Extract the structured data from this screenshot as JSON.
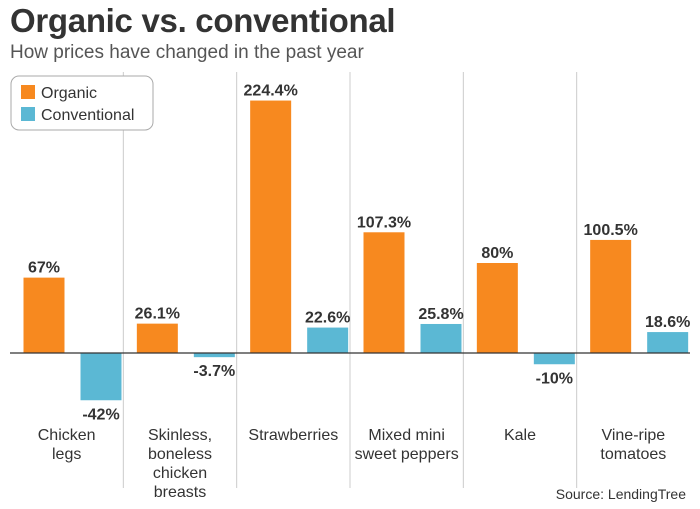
{
  "title": "Organic vs. conventional",
  "subtitle": "How prices have changed in the past year",
  "source": "Source: LendingTree",
  "colors": {
    "organic": "#F7891F",
    "conventional": "#5BB8D4"
  },
  "chart_data": {
    "type": "bar",
    "title": "Organic vs. conventional",
    "subtitle": "How prices have changed in the past year",
    "categories": [
      [
        "Chicken",
        "legs"
      ],
      [
        "Skinless,",
        "boneless",
        "chicken",
        "breasts"
      ],
      [
        "Strawberries"
      ],
      [
        "Mixed mini",
        "sweet peppers"
      ],
      [
        "Kale"
      ],
      [
        "Vine-ripe",
        "tomatoes"
      ]
    ],
    "series": [
      {
        "name": "Organic",
        "values": [
          67,
          26.1,
          224.4,
          107.3,
          80,
          100.5
        ],
        "labels": [
          "67%",
          "26.1%",
          "224.4%",
          "107.3%",
          "80%",
          "100.5%"
        ]
      },
      {
        "name": "Conventional",
        "values": [
          -42,
          -3.7,
          22.6,
          25.8,
          -10,
          18.6
        ],
        "labels": [
          "-42%",
          "-3.7%",
          "22.6%",
          "25.8%",
          "-10%",
          "18.6%"
        ]
      }
    ],
    "legend": "top-left",
    "grid": false
  }
}
